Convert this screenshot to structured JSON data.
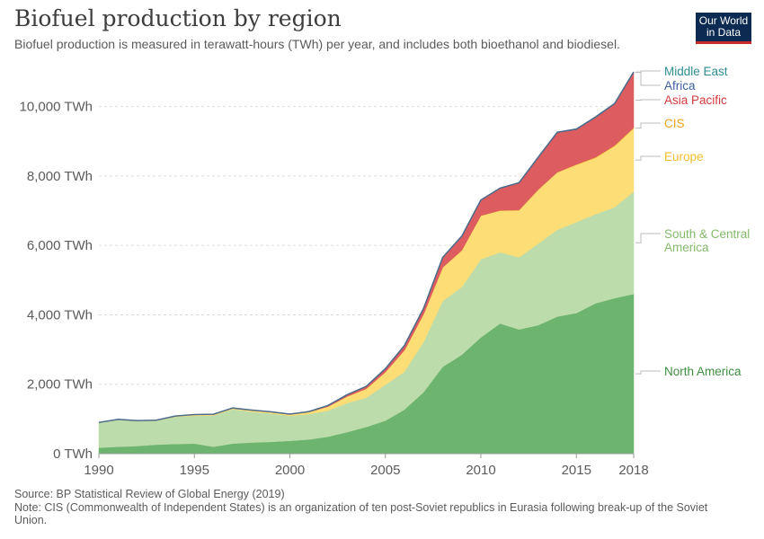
{
  "header": {
    "title": "Biofuel production by region",
    "subtitle": "Biofuel production is measured in terawatt-hours (TWh) per year, and includes both bioethanol and biodiesel.",
    "logo_line1": "Our World",
    "logo_line2": "in Data"
  },
  "footer": {
    "source": "Source: BP Statistical Review of Global Energy (2019)",
    "note": "Note: CIS (Commonwealth of Independent States) is an organization of ten post-Soviet republics in Eurasia following break-up of the Soviet Union."
  },
  "colors": {
    "North America": "#6db46e",
    "South & Central America": "#bddcab",
    "Europe": "#fddd75",
    "CIS": "#f4b132",
    "Asia Pacific": "#dc5c60",
    "Africa": "#3d5f9e",
    "Middle East": "#2e8f92",
    "label_North America": "#3e8e41",
    "label_South & Central America": "#84b96a",
    "label_Europe": "#f2be2e",
    "label_CIS": "#f0a21c",
    "label_Asia Pacific": "#d03a3d",
    "label_Africa": "#3d5f9e",
    "label_Middle East": "#2e8f92"
  },
  "chart_data": {
    "type": "area",
    "stacked": true,
    "title": "Biofuel production by region",
    "x": [
      1990,
      1991,
      1992,
      1993,
      1994,
      1995,
      1996,
      1997,
      1998,
      1999,
      2000,
      2001,
      2002,
      2003,
      2004,
      2005,
      2006,
      2007,
      2008,
      2009,
      2010,
      2011,
      2012,
      2013,
      2014,
      2015,
      2016,
      2017,
      2018
    ],
    "x_ticks": [
      1990,
      1995,
      2000,
      2005,
      2010,
      2015,
      2018
    ],
    "x_tick_labels": [
      "1990",
      "1995",
      "2000",
      "2005",
      "2010",
      "2015",
      "2018"
    ],
    "y_ticks": [
      0,
      2000,
      4000,
      6000,
      8000,
      10000
    ],
    "y_tick_labels": [
      "0 TWh",
      "2,000 TWh",
      "4,000 TWh",
      "6,000 TWh",
      "8,000 TWh",
      "10,000 TWh"
    ],
    "ylim": [
      0,
      11000
    ],
    "grid": "horizontal dashed",
    "legend": "right-side labels",
    "series": [
      {
        "name": "North America",
        "values": [
          170,
          200,
          220,
          260,
          280,
          290,
          200,
          290,
          320,
          340,
          370,
          410,
          490,
          620,
          770,
          950,
          1270,
          1770,
          2500,
          2850,
          3350,
          3750,
          3580,
          3700,
          3950,
          4050,
          4330,
          4480,
          4600
        ]
      },
      {
        "name": "South & Central America",
        "values": [
          720,
          780,
          720,
          690,
          780,
          800,
          900,
          990,
          890,
          820,
          720,
          730,
          750,
          840,
          840,
          1040,
          1090,
          1450,
          1900,
          1950,
          2250,
          2050,
          2080,
          2350,
          2500,
          2620,
          2570,
          2620,
          2950
        ]
      },
      {
        "name": "Europe",
        "values": [
          10,
          10,
          10,
          15,
          20,
          30,
          30,
          30,
          40,
          40,
          40,
          60,
          120,
          190,
          260,
          360,
          620,
          800,
          960,
          1050,
          1250,
          1200,
          1350,
          1550,
          1650,
          1650,
          1620,
          1760,
          1820
        ]
      },
      {
        "name": "CIS",
        "values": [
          0,
          0,
          0,
          0,
          0,
          0,
          0,
          0,
          0,
          0,
          0,
          0,
          0,
          0,
          0,
          0,
          0,
          0,
          5,
          10,
          10,
          10,
          10,
          10,
          10,
          15,
          20,
          20,
          20
        ]
      },
      {
        "name": "Asia Pacific",
        "values": [
          0,
          0,
          0,
          0,
          5,
          5,
          5,
          5,
          5,
          5,
          10,
          15,
          30,
          50,
          70,
          100,
          140,
          160,
          280,
          400,
          440,
          630,
          780,
          920,
          1140,
          1000,
          1140,
          1190,
          1590
        ]
      },
      {
        "name": "Africa",
        "values": [
          0,
          0,
          0,
          0,
          0,
          0,
          0,
          0,
          0,
          0,
          0,
          0,
          0,
          0,
          0,
          0,
          0,
          5,
          5,
          5,
          5,
          5,
          5,
          5,
          5,
          10,
          10,
          10,
          10
        ]
      },
      {
        "name": "Middle East",
        "values": [
          0,
          0,
          0,
          0,
          0,
          0,
          0,
          0,
          0,
          0,
          0,
          0,
          0,
          0,
          0,
          0,
          0,
          5,
          5,
          5,
          5,
          5,
          5,
          5,
          5,
          10,
          10,
          10,
          10
        ]
      }
    ],
    "series_labels": [
      {
        "name": "Middle East",
        "lines": [
          "Middle East"
        ]
      },
      {
        "name": "Africa",
        "lines": [
          "Africa"
        ]
      },
      {
        "name": "Asia Pacific",
        "lines": [
          "Asia Pacific"
        ]
      },
      {
        "name": "CIS",
        "lines": [
          "CIS"
        ]
      },
      {
        "name": "Europe",
        "lines": [
          "Europe"
        ]
      },
      {
        "name": "South & Central America",
        "lines": [
          "South & Central",
          "America"
        ]
      },
      {
        "name": "North America",
        "lines": [
          "North America"
        ]
      }
    ]
  }
}
